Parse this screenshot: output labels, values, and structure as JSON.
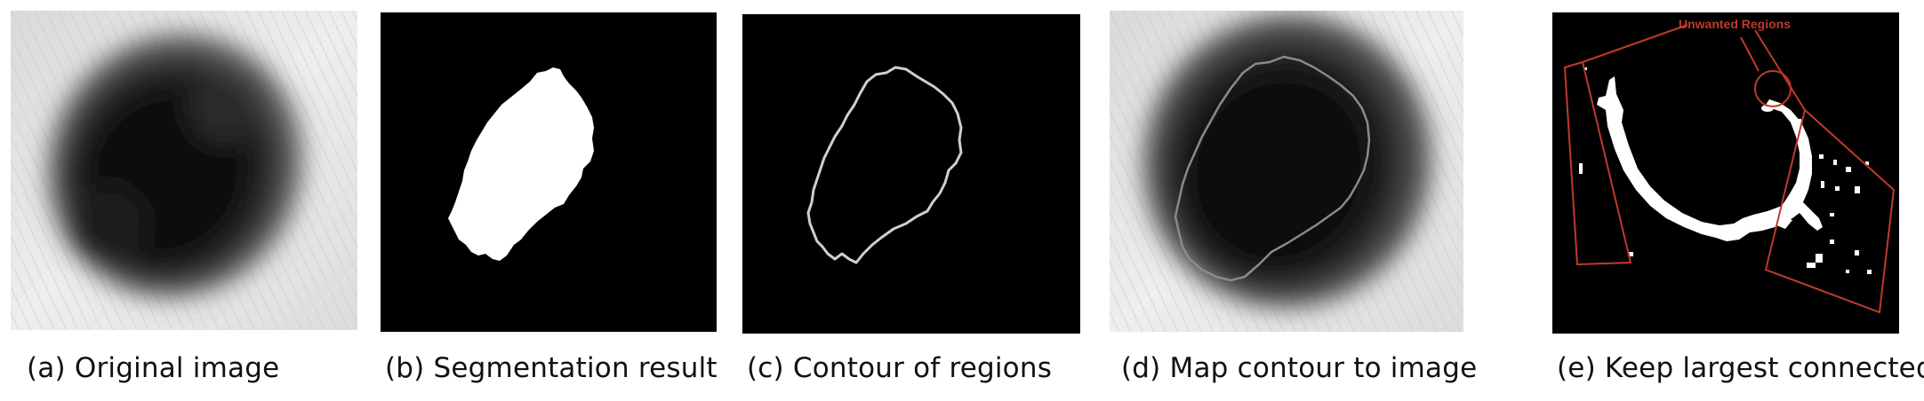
{
  "figure": {
    "captions": {
      "a": "(a) Original image",
      "b": "(b) Segmentation result",
      "c": "(c) Contour of regions",
      "d": "(d) Map contour to image",
      "e": "(e) Keep largest connected"
    },
    "annotation": {
      "label": "Unwanted Regions",
      "color": "#c0392b"
    }
  }
}
